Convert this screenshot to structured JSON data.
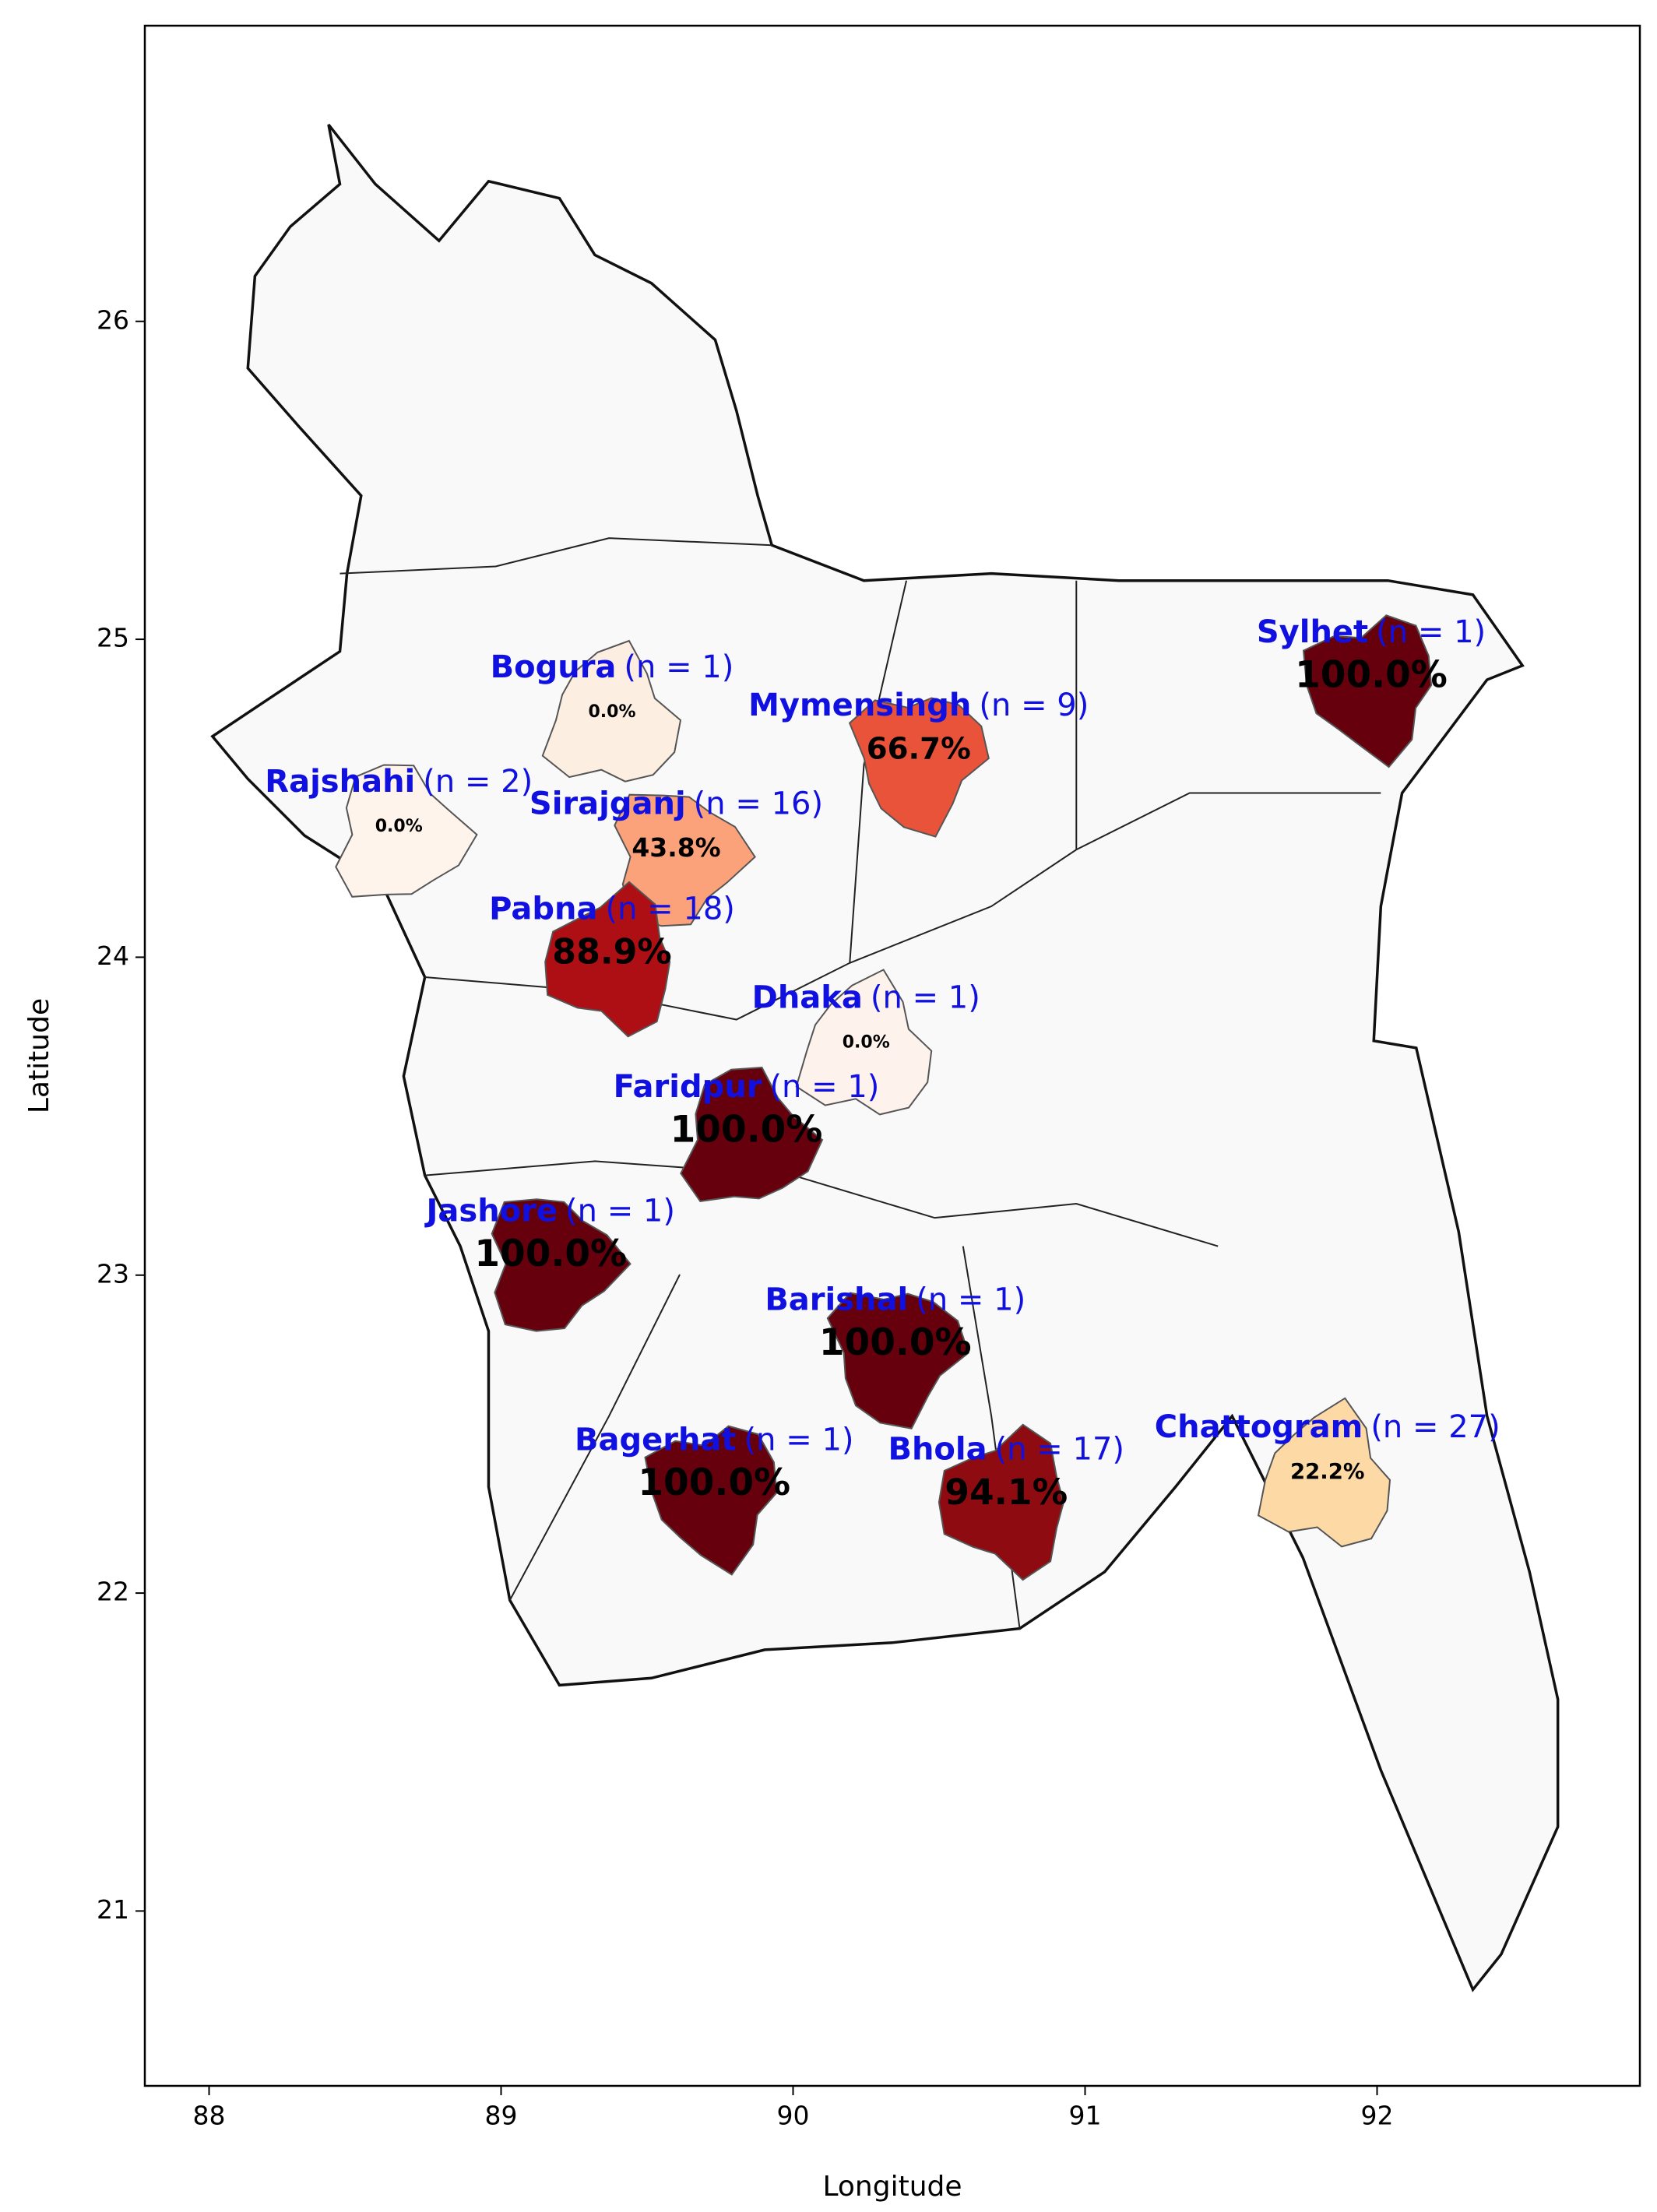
{
  "chart_data": {
    "type": "choropleth",
    "xlabel": "Longitude",
    "ylabel": "Latitude",
    "xlim": [
      87.78,
      92.9
    ],
    "ylim": [
      20.45,
      26.93
    ],
    "xticks": [
      88,
      89,
      90,
      91,
      92
    ],
    "yticks": [
      21,
      22,
      23,
      24,
      25,
      26
    ],
    "regions": [
      {
        "name": "Bogura",
        "n_label": "(n = 1)",
        "lon": 89.38,
        "lat": 24.77,
        "value": 0,
        "value_label": "0.0%",
        "color": "#fdeee2"
      },
      {
        "name": "Rajshahi",
        "n_label": "(n = 2)",
        "lon": 88.65,
        "lat": 24.41,
        "value": 0,
        "value_label": "0.0%",
        "color": "#fef4ec"
      },
      {
        "name": "Sirajganj",
        "n_label": "(n = 16)",
        "lon": 89.6,
        "lat": 24.34,
        "value": 43.8,
        "value_label": "43.8%",
        "color": "#fca27a"
      },
      {
        "name": "Mymensingh",
        "n_label": "(n = 9)",
        "lon": 90.43,
        "lat": 24.65,
        "value": 66.7,
        "value_label": "66.7%",
        "color": "#e8533a"
      },
      {
        "name": "Sylhet",
        "n_label": "(n = 1)",
        "lon": 91.98,
        "lat": 24.88,
        "value": 100,
        "value_label": "100.0%",
        "color": "#67000d"
      },
      {
        "name": "Pabna",
        "n_label": "(n = 18)",
        "lon": 89.38,
        "lat": 24.01,
        "value": 88.9,
        "value_label": "88.9%",
        "color": "#ad0f14"
      },
      {
        "name": "Dhaka",
        "n_label": "(n = 1)",
        "lon": 90.25,
        "lat": 23.73,
        "value": 0,
        "value_label": "0.0%",
        "color": "#fef3ec"
      },
      {
        "name": "Faridpur",
        "n_label": "(n = 1)",
        "lon": 89.84,
        "lat": 23.45,
        "value": 100,
        "value_label": "100.0%",
        "color": "#67000d"
      },
      {
        "name": "Jashore",
        "n_label": "(n = 1)",
        "lon": 89.17,
        "lat": 23.06,
        "value": 100,
        "value_label": "100.0%",
        "color": "#67000d"
      },
      {
        "name": "Barishal",
        "n_label": "(n = 1)",
        "lon": 90.35,
        "lat": 22.78,
        "value": 100,
        "value_label": "100.0%",
        "color": "#67000d"
      },
      {
        "name": "Bagerhat",
        "n_label": "(n = 1)",
        "lon": 89.73,
        "lat": 22.34,
        "value": 100,
        "value_label": "100.0%",
        "color": "#67000d"
      },
      {
        "name": "Bhola",
        "n_label": "(n = 17)",
        "lon": 90.73,
        "lat": 22.31,
        "value": 94.1,
        "value_label": "94.1%",
        "color": "#8e0b12"
      },
      {
        "name": "Chattogram",
        "n_label": "(n = 27)",
        "lon": 91.83,
        "lat": 22.38,
        "value": 22.2,
        "value_label": "22.2%",
        "color": "#fdd9a6"
      }
    ]
  }
}
